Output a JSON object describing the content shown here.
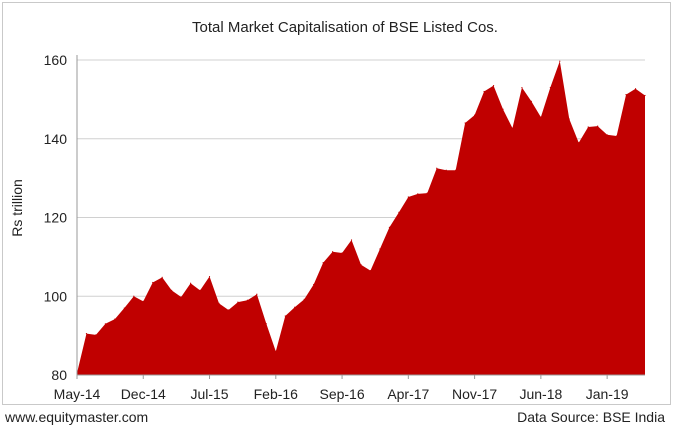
{
  "chart_data": {
    "type": "area",
    "title": "Total Market Capitalisation of BSE Listed Cos.",
    "ylabel": "Rs trillion",
    "xlabel": "",
    "ylim": [
      80,
      160
    ],
    "yticks": [
      80,
      100,
      120,
      140,
      160
    ],
    "xtick_labels": [
      "May-14",
      "Dec-14",
      "Jul-15",
      "Feb-16",
      "Sep-16",
      "Apr-17",
      "Nov-17",
      "Jun-18",
      "Jan-19"
    ],
    "grid": "horizontal",
    "legend": "none",
    "color": "#c00000",
    "x": [
      "May-14",
      "Jun-14",
      "Jul-14",
      "Aug-14",
      "Sep-14",
      "Oct-14",
      "Nov-14",
      "Dec-14",
      "Jan-15",
      "Feb-15",
      "Mar-15",
      "Apr-15",
      "May-15",
      "Jun-15",
      "Jul-15",
      "Aug-15",
      "Sep-15",
      "Oct-15",
      "Nov-15",
      "Dec-15",
      "Jan-16",
      "Feb-16",
      "Mar-16",
      "Apr-16",
      "May-16",
      "Jun-16",
      "Jul-16",
      "Aug-16",
      "Sep-16",
      "Oct-16",
      "Nov-16",
      "Dec-16",
      "Jan-17",
      "Feb-17",
      "Mar-17",
      "Apr-17",
      "May-17",
      "Jun-17",
      "Jul-17",
      "Aug-17",
      "Sep-17",
      "Oct-17",
      "Nov-17",
      "Dec-17",
      "Jan-18",
      "Feb-18",
      "Mar-18",
      "Apr-18",
      "May-18",
      "Jun-18",
      "Jul-18",
      "Aug-18",
      "Sep-18",
      "Oct-18",
      "Nov-18",
      "Dec-18",
      "Jan-19",
      "Feb-19",
      "Mar-19",
      "Apr-19",
      "May-19"
    ],
    "values": [
      80.5,
      90.5,
      90.2,
      93.0,
      94.2,
      97.0,
      100.0,
      98.7,
      103.5,
      104.8,
      101.5,
      99.8,
      103.3,
      101.5,
      105.0,
      98.2,
      96.5,
      98.5,
      99.0,
      100.5,
      93.0,
      86.0,
      95.0,
      97.2,
      99.2,
      103.0,
      108.5,
      111.3,
      111.0,
      114.3,
      108.0,
      106.5,
      112.0,
      117.5,
      121.3,
      125.2,
      126.0,
      126.2,
      132.5,
      132.0,
      132.0,
      144.0,
      146.0,
      152.0,
      153.5,
      147.5,
      142.7,
      153.0,
      149.5,
      145.5,
      153.0,
      159.7,
      145.0,
      139.0,
      143.0,
      143.2,
      141.0,
      140.7,
      151.2,
      152.7,
      151.0
    ]
  },
  "footer": {
    "left": "www.equitymaster.com",
    "right": "Data Source: BSE India"
  }
}
